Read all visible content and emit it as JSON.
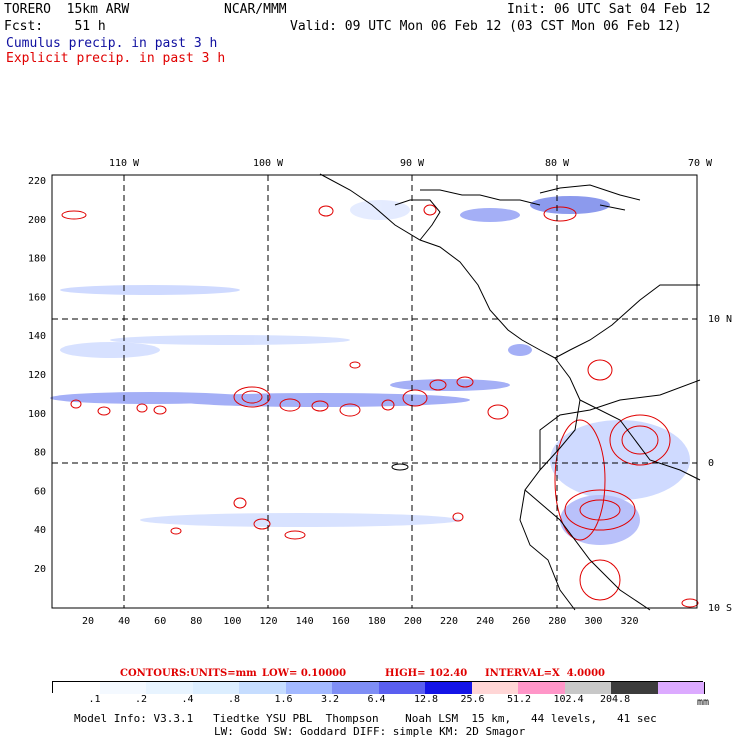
{
  "header": {
    "model": "TORERO  15km ARW",
    "center": "NCAR/MMM",
    "init": "Init: 06 UTC Sat 04 Feb 12",
    "forecast": "Fcst:    51 h",
    "valid": "Valid: 09 UTC Mon 06 Feb 12 (03 CST Mon 06 Feb 12)",
    "legend_cumulus": "Cumulus precip. in past 3 h",
    "legend_explicit": "Explicit precip. in past 3 h"
  },
  "colors": {
    "cumulus": "#1010a0",
    "explicit": "#e00000",
    "grid": "#000000"
  },
  "map": {
    "lon_labels": [
      "110 W",
      "100 W",
      "90 W",
      "80 W",
      "70 W"
    ],
    "lat_labels": [
      "10 N",
      "0",
      "10 S"
    ],
    "y_ticks": [
      "220",
      "200",
      "180",
      "160",
      "140",
      "120",
      "100",
      "80",
      "60",
      "40",
      "20"
    ],
    "x_ticks": [
      "20",
      "40",
      "60",
      "80",
      "100",
      "120",
      "140",
      "160",
      "180",
      "200",
      "220",
      "240",
      "260",
      "280",
      "300",
      "320"
    ]
  },
  "contour_info": {
    "label": "CONTOURS:",
    "units": "UNITS=mm",
    "low": "LOW= 0.10000",
    "high": "HIGH= 102.40",
    "interval": "INTERVAL=X  4.0000"
  },
  "colorbar": {
    "colors": [
      "#ffffff",
      "#f4f9ff",
      "#e8f4ff",
      "#dceeff",
      "#c6ddff",
      "#a3b9ff",
      "#7f8ef5",
      "#5a5ff0",
      "#1414e6",
      "#ffd6d6",
      "#ff96c8",
      "#c8c8c8",
      "#3c3c3c",
      "#dcaaff"
    ],
    "labels": [
      ".1",
      ".2",
      ".4",
      ".8",
      "1.6",
      "3.2",
      "6.4",
      "12.8",
      "25.6",
      "51.2",
      "102.4",
      "204.8"
    ],
    "unit": "mm"
  },
  "footer": {
    "line1": "Model Info: V3.3.1   Tiedtke YSU PBL  Thompson    Noah LSM  15 km,   44 levels,   41 sec",
    "line2": "LW: Godd SW: Goddard DIFF: simple KM: 2D Smagor"
  }
}
